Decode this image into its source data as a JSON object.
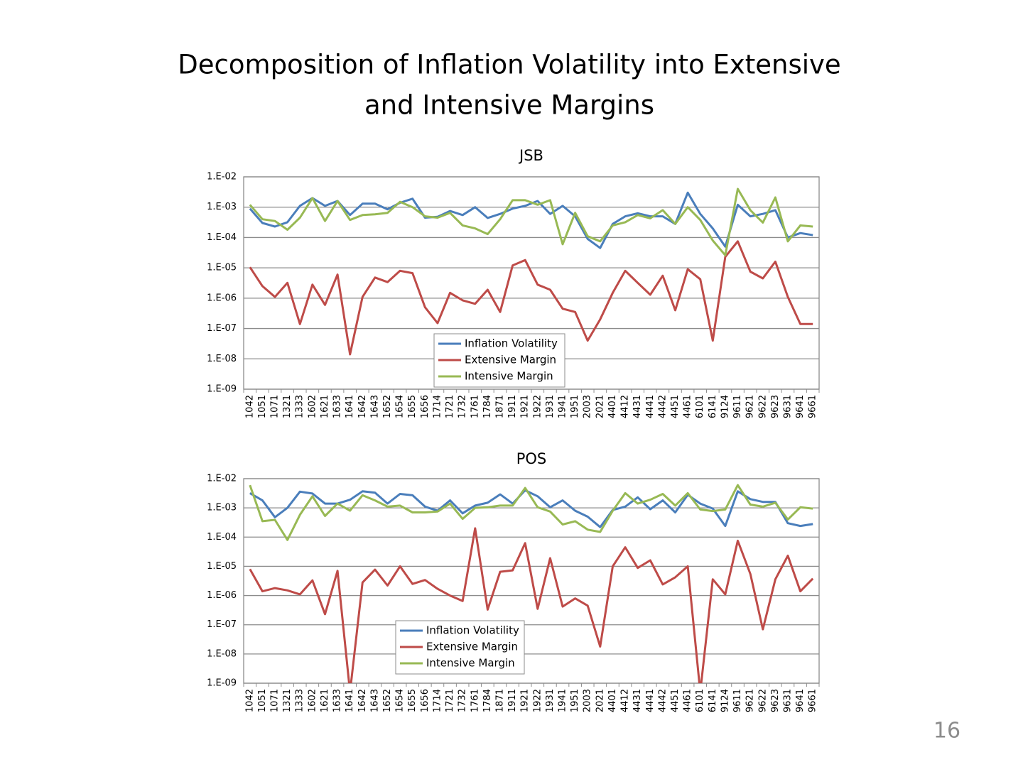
{
  "title_lines": [
    "Decomposition of Inflation Volatility into Extensive",
    "and Intensive Margins"
  ],
  "page_number": "16",
  "chart_data": [
    {
      "type": "line",
      "title": "JSB",
      "log_y": true,
      "grid": true,
      "legend": "lower-center",
      "categories": [
        "1042",
        "1051",
        "1071",
        "1321",
        "1333",
        "1602",
        "1621",
        "1633",
        "1641",
        "1642",
        "1643",
        "1652",
        "1654",
        "1655",
        "1656",
        "1714",
        "1721",
        "1732",
        "1761",
        "1784",
        "1871",
        "1911",
        "1921",
        "1922",
        "1931",
        "1941",
        "1951",
        "2003",
        "2021",
        "4401",
        "4412",
        "4431",
        "4441",
        "4442",
        "4451",
        "4461",
        "6101",
        "6141",
        "9124",
        "9611",
        "9621",
        "9622",
        "9623",
        "9631",
        "9641",
        "9661"
      ],
      "ylim": [
        1e-09,
        0.01
      ],
      "yticks": [
        {
          "value": 0.01,
          "label": "1.E-02"
        },
        {
          "value": 0.001,
          "label": "1.E-03"
        },
        {
          "value": 0.0001,
          "label": "1.E-04"
        },
        {
          "value": 1e-05,
          "label": "1.E-05"
        },
        {
          "value": 1e-06,
          "label": "1.E-06"
        },
        {
          "value": 1e-07,
          "label": "1.E-07"
        },
        {
          "value": 1e-08,
          "label": "1.E-08"
        },
        {
          "value": 1e-09,
          "label": "1.E-09"
        }
      ],
      "series": [
        {
          "name": "Inflation Volatility",
          "color": "#4a7ebb",
          "values": [
            0.0009,
            0.0003,
            0.00023,
            0.00032,
            0.0011,
            0.002,
            0.0011,
            0.0016,
            0.00055,
            0.0013,
            0.0013,
            0.00085,
            0.0014,
            0.0019,
            0.00045,
            0.00048,
            0.00075,
            0.00055,
            0.001,
            0.00044,
            0.0006,
            0.0009,
            0.0011,
            0.0016,
            0.0006,
            0.0011,
            0.0005,
            9e-05,
            4.5e-05,
            0.00028,
            0.0005,
            0.00063,
            0.0005,
            0.0005,
            0.00028,
            0.003,
            0.0006,
            0.0002,
            5e-05,
            0.0012,
            0.0005,
            0.0006,
            0.0008,
            0.0001,
            0.00014,
            0.00012
          ]
        },
        {
          "name": "Extensive Margin",
          "color": "#be4b48",
          "values": [
            1.05e-05,
            2.5e-06,
            1.1e-06,
            3.2e-06,
            1.4e-07,
            2.8e-06,
            6e-07,
            6e-06,
            1.4e-08,
            1.1e-06,
            4.8e-06,
            3.4e-06,
            8e-06,
            6.7e-06,
            5e-07,
            1.5e-07,
            1.5e-06,
            8.5e-07,
            6.5e-07,
            1.9e-06,
            3.5e-07,
            1.2e-05,
            1.8e-05,
            2.8e-06,
            1.9e-06,
            4.5e-07,
            3.5e-07,
            4e-08,
            2e-07,
            1.5e-06,
            8e-06,
            3.2e-06,
            1.3e-06,
            5.5e-06,
            4e-07,
            9e-06,
            4.2e-06,
            4e-08,
            2.3e-05,
            7.5e-05,
            7.5e-06,
            4.5e-06,
            1.6e-05,
            1.1e-06,
            1.4e-07,
            1.4e-07
          ]
        },
        {
          "name": "Intensive Margin",
          "color": "#98b954",
          "values": [
            0.0012,
            0.0004,
            0.00035,
            0.00018,
            0.00045,
            0.002,
            0.00035,
            0.0016,
            0.00038,
            0.00055,
            0.00058,
            0.00065,
            0.0015,
            0.001,
            0.0005,
            0.00045,
            0.00065,
            0.00025,
            0.0002,
            0.00013,
            0.0004,
            0.0017,
            0.0017,
            0.0012,
            0.0017,
            6e-05,
            0.00065,
            0.00011,
            7.5e-05,
            0.00025,
            0.00032,
            0.00055,
            0.00043,
            0.0008,
            0.00028,
            0.001,
            0.00038,
            8e-05,
            2.6e-05,
            0.004,
            0.0008,
            0.00031,
            0.0021,
            7.5e-05,
            0.00025,
            0.00023
          ]
        }
      ]
    },
    {
      "type": "line",
      "title": "POS",
      "log_y": true,
      "grid": true,
      "legend": "lower-center",
      "categories": [
        "1042",
        "1051",
        "1071",
        "1321",
        "1333",
        "1602",
        "1621",
        "1633",
        "1641",
        "1642",
        "1643",
        "1652",
        "1654",
        "1655",
        "1656",
        "1714",
        "1721",
        "1732",
        "1761",
        "1784",
        "1871",
        "1911",
        "1921",
        "1922",
        "1931",
        "1941",
        "1951",
        "2003",
        "2021",
        "4401",
        "4412",
        "4431",
        "4441",
        "4442",
        "4451",
        "4461",
        "6101",
        "6141",
        "9124",
        "9611",
        "9621",
        "9622",
        "9623",
        "9631",
        "9641",
        "9661"
      ],
      "ylim": [
        1e-09,
        0.01
      ],
      "yticks": [
        {
          "value": 0.01,
          "label": "1.E-02"
        },
        {
          "value": 0.001,
          "label": "1.E-03"
        },
        {
          "value": 0.0001,
          "label": "1.E-04"
        },
        {
          "value": 1e-05,
          "label": "1.E-05"
        },
        {
          "value": 1e-06,
          "label": "1.E-06"
        },
        {
          "value": 1e-07,
          "label": "1.E-07"
        },
        {
          "value": 1e-08,
          "label": "1.E-08"
        },
        {
          "value": 1e-09,
          "label": "1.E-09"
        }
      ],
      "series": [
        {
          "name": "Inflation Volatility",
          "color": "#4a7ebb",
          "values": [
            0.0032,
            0.0018,
            0.00048,
            0.001,
            0.0036,
            0.0031,
            0.0014,
            0.0014,
            0.0019,
            0.0037,
            0.0033,
            0.0014,
            0.003,
            0.0027,
            0.0011,
            0.0008,
            0.0018,
            0.00065,
            0.0012,
            0.0015,
            0.0029,
            0.0014,
            0.004,
            0.0025,
            0.00105,
            0.0018,
            0.0008,
            0.0005,
            0.00022,
            0.00085,
            0.0011,
            0.0023,
            0.0009,
            0.0018,
            0.0007,
            0.0028,
            0.0014,
            0.00095,
            0.00024,
            0.0037,
            0.002,
            0.0016,
            0.0016,
            0.0003,
            0.00024,
            0.00028
          ]
        },
        {
          "name": "Extensive Margin",
          "color": "#be4b48",
          "values": [
            8e-06,
            1.4e-06,
            1.8e-06,
            1.5e-06,
            1.1e-06,
            3.3e-06,
            2.3e-07,
            7e-06,
            5e-10,
            2.8e-06,
            7.7e-06,
            2.2e-06,
            1e-05,
            2.5e-06,
            3.4e-06,
            1.7e-06,
            1e-06,
            6.5e-07,
            0.0002,
            3.3e-07,
            6.5e-06,
            7.3e-06,
            6.2e-05,
            3.5e-07,
            1.9e-05,
            4.2e-07,
            8e-07,
            4.5e-07,
            1.8e-08,
            1e-05,
            4.5e-05,
            8.8e-06,
            1.6e-05,
            2.4e-06,
            4.2e-06,
            1e-05,
            5e-10,
            3.6e-06,
            1.1e-06,
            7.5e-05,
            5.5e-06,
            7e-08,
            3.6e-06,
            2.3e-05,
            1.4e-06,
            3.8e-06
          ]
        },
        {
          "name": "Intensive Margin",
          "color": "#98b954",
          "values": [
            0.006,
            0.00035,
            0.00039,
            8e-05,
            0.00058,
            0.0025,
            0.00053,
            0.0014,
            0.0008,
            0.0027,
            0.0018,
            0.0011,
            0.0012,
            0.0007,
            0.0007,
            0.00075,
            0.0014,
            0.00042,
            0.001,
            0.00105,
            0.0012,
            0.0012,
            0.0048,
            0.00105,
            0.00075,
            0.00027,
            0.00035,
            0.00018,
            0.00015,
            0.0008,
            0.0032,
            0.0014,
            0.0019,
            0.003,
            0.0012,
            0.0032,
            0.00088,
            0.00078,
            0.00088,
            0.006,
            0.0013,
            0.0011,
            0.0015,
            0.0004,
            0.00105,
            0.00095
          ]
        }
      ]
    }
  ]
}
